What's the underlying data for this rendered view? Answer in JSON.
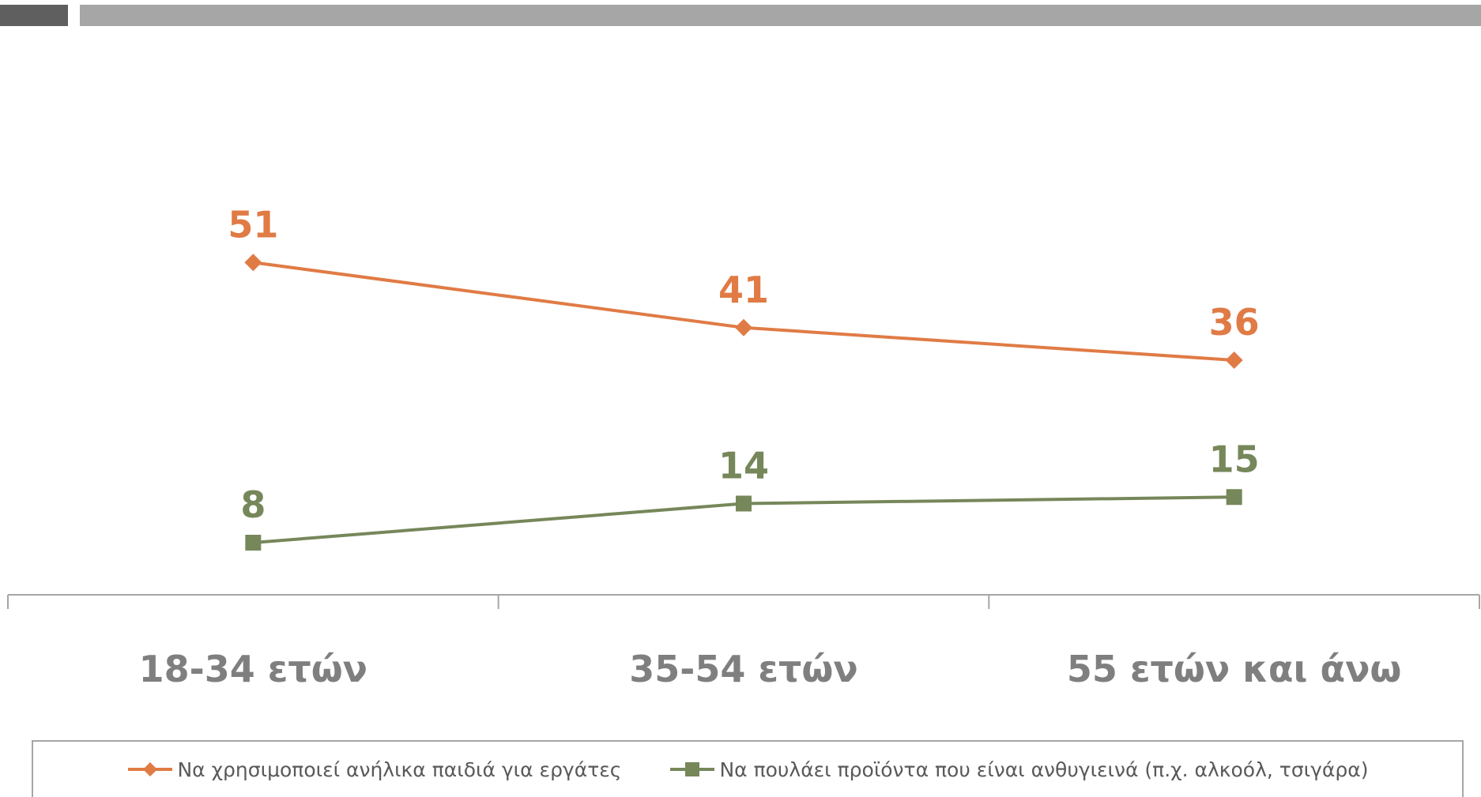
{
  "colors": {
    "series_1": "#e07b45",
    "series_2": "#76875a",
    "axis": "#a6a6a6",
    "category_text": "#7f7f7f"
  },
  "chart_data": {
    "type": "line",
    "categories": [
      "18-34 ετών",
      "35-54 ετών",
      "55 ετών και άνω"
    ],
    "series": [
      {
        "name": "Να χρησιμοποιεί ανήλικα παιδιά για εργάτες",
        "values": [
          51,
          41,
          36
        ],
        "color": "#e07b45",
        "marker": "diamond"
      },
      {
        "name": "Να πουλάει προϊόντα που είναι ανθυγιεινά (π.χ. αλκοόλ, τσιγάρα)",
        "values": [
          8,
          14,
          15
        ],
        "color": "#76875a",
        "marker": "square"
      }
    ],
    "data_labels": true,
    "ylim": [
      0,
      90
    ],
    "grid": false,
    "legend_position": "bottom"
  }
}
